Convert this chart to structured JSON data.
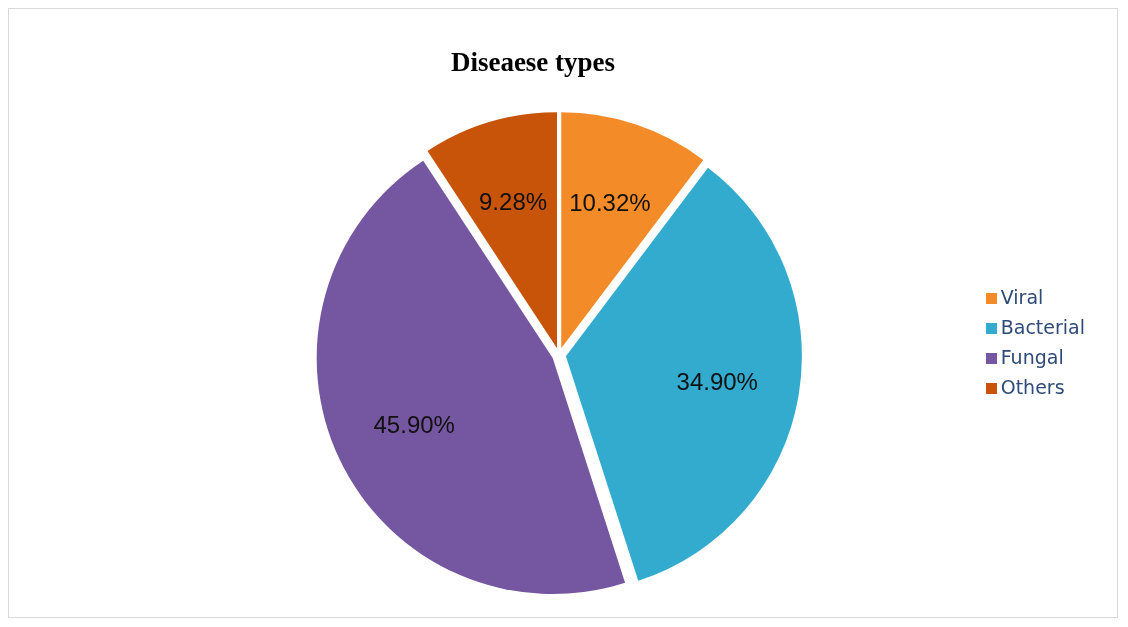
{
  "chart_data": {
    "type": "pie",
    "title": "Diseaese types",
    "categories": [
      "Viral",
      "Bacterial",
      "Fungal",
      "Others"
    ],
    "values": [
      10.32,
      34.9,
      45.9,
      9.28
    ],
    "value_labels": [
      "10.32%",
      "34.90%",
      "45.90%",
      "9.28%"
    ],
    "colors": [
      "#f38b28",
      "#33abcf",
      "#7556a0",
      "#c85409"
    ],
    "legend": "right"
  }
}
